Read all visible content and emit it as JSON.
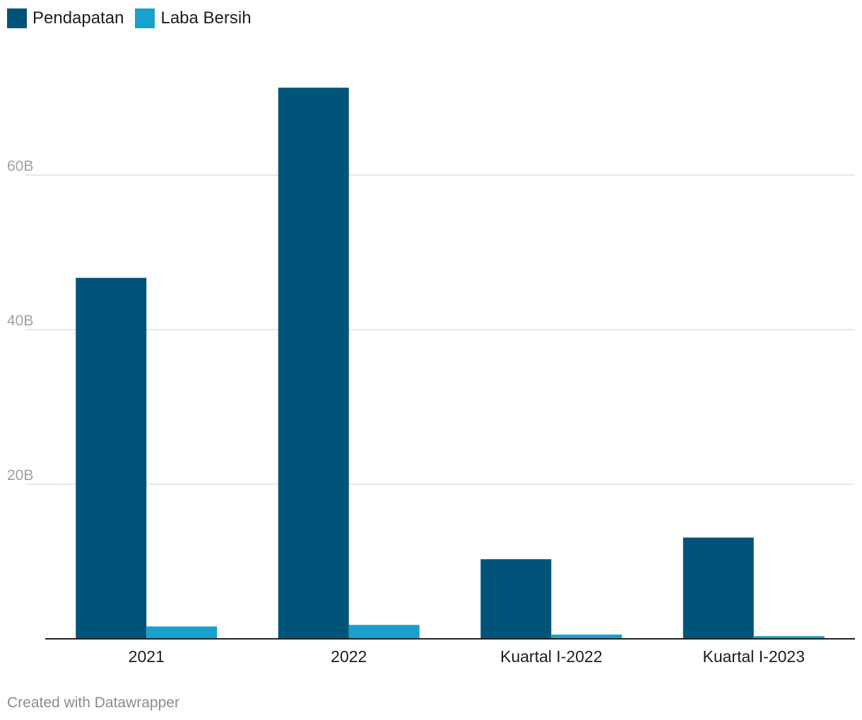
{
  "chart_data": {
    "type": "bar",
    "categories": [
      "2021",
      "2022",
      "Kuartal I-2022",
      "Kuartal I-2023"
    ],
    "series": [
      {
        "name": "Pendapatan",
        "color": "#015479",
        "values": [
          46.7,
          71.3,
          10.3,
          13.1
        ]
      },
      {
        "name": "Laba Bersih",
        "color": "#18a1cd",
        "values": [
          1.6,
          1.8,
          0.55,
          0.35
        ]
      }
    ],
    "ylim": [
      0,
      72
    ],
    "yticks": [
      {
        "value": 20,
        "label": "20B"
      },
      {
        "value": 40,
        "label": "40B"
      },
      {
        "value": 60,
        "label": "60B"
      }
    ],
    "grid": true,
    "legend_position": "top-left",
    "xlabel": "",
    "ylabel": ""
  },
  "footer": {
    "credit": "Created with Datawrapper"
  }
}
